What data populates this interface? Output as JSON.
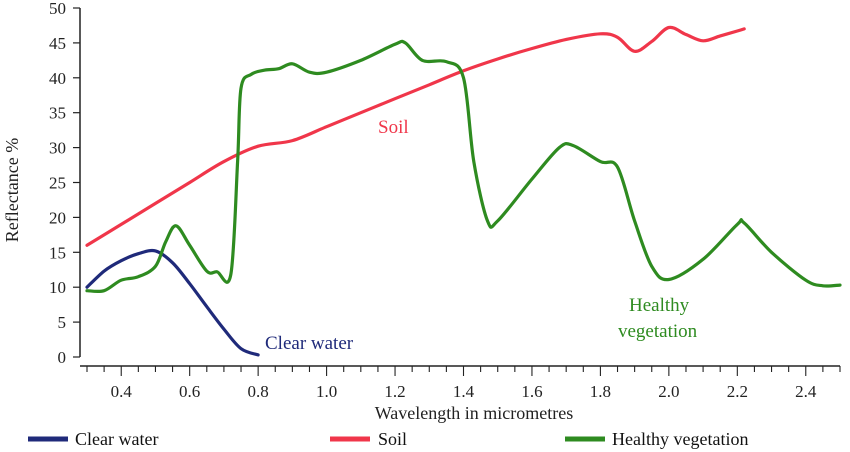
{
  "chart_data": {
    "type": "line",
    "title": "",
    "xlabel": "Wavelength in micrometres",
    "ylabel": "Reflectance %",
    "xlim": [
      0.3,
      2.5
    ],
    "ylim": [
      0,
      50
    ],
    "x_ticks": [
      0.4,
      0.6,
      0.8,
      1.0,
      1.2,
      1.4,
      1.6,
      1.8,
      2.0,
      2.2,
      2.4
    ],
    "x_tick_labels": [
      "0.4",
      "0.6",
      "0.8",
      "1.0",
      "1.2",
      "1.4",
      "1.6",
      "1.8",
      "2.0",
      "2.2",
      "2.4"
    ],
    "y_ticks": [
      0,
      5,
      10,
      15,
      20,
      25,
      30,
      35,
      40,
      45,
      50
    ],
    "y_tick_labels": [
      "0",
      "5",
      "10",
      "15",
      "20",
      "25",
      "30",
      "35",
      "40",
      "45",
      "50"
    ],
    "grid": false,
    "legend_position": "bottom",
    "series": [
      {
        "key": "water",
        "name": "Clear water",
        "color": "#1f2a7a",
        "annotation": "Clear water",
        "x": [
          0.3,
          0.35,
          0.4,
          0.45,
          0.5,
          0.55,
          0.6,
          0.65,
          0.7,
          0.75,
          0.8
        ],
        "y": [
          10,
          12.3,
          13.8,
          14.8,
          15.2,
          13.5,
          10.5,
          7.2,
          4.0,
          1.2,
          0.3
        ]
      },
      {
        "key": "soil",
        "name": "Soil",
        "color": "#f0364a",
        "annotation": "Soil",
        "x": [
          0.3,
          0.4,
          0.5,
          0.6,
          0.7,
          0.8,
          0.9,
          1.0,
          1.1,
          1.2,
          1.3,
          1.4,
          1.5,
          1.6,
          1.7,
          1.8,
          1.85,
          1.9,
          1.95,
          2.0,
          2.05,
          2.1,
          2.15,
          2.2,
          2.22
        ],
        "y": [
          16,
          19,
          22,
          25,
          28,
          30.2,
          31,
          33,
          35,
          37,
          39,
          41,
          42.7,
          44.2,
          45.5,
          46.3,
          45.8,
          43.8,
          45.2,
          47.2,
          46.2,
          45.3,
          46,
          46.7,
          47
        ]
      },
      {
        "key": "veg",
        "name": "Healthy vegetation",
        "color": "#2e8b20",
        "annotation": "Healthy vegetation",
        "annotation_lines": [
          "Healthy",
          "vegetation"
        ],
        "x": [
          0.3,
          0.35,
          0.4,
          0.45,
          0.5,
          0.53,
          0.56,
          0.6,
          0.65,
          0.68,
          0.72,
          0.74,
          0.75,
          0.78,
          0.82,
          0.86,
          0.9,
          0.95,
          1.0,
          1.1,
          1.2,
          1.23,
          1.28,
          1.35,
          1.4,
          1.43,
          1.47,
          1.5,
          1.6,
          1.68,
          1.72,
          1.8,
          1.85,
          1.9,
          1.95,
          2.0,
          2.1,
          2.2,
          2.22,
          2.3,
          2.4,
          2.45,
          2.5
        ],
        "y": [
          9.5,
          9.5,
          11,
          11.5,
          13,
          16.5,
          18.8,
          16,
          12.3,
          12.2,
          11.8,
          28,
          38.5,
          40.5,
          41.1,
          41.3,
          42,
          40.8,
          40.8,
          42.5,
          44.8,
          45,
          42.5,
          42.3,
          40,
          28,
          19.5,
          19.5,
          25.5,
          30,
          30.3,
          28,
          27.2,
          19.5,
          13,
          11.1,
          14,
          19,
          19.2,
          15,
          11,
          10.2,
          10.3
        ]
      }
    ]
  }
}
